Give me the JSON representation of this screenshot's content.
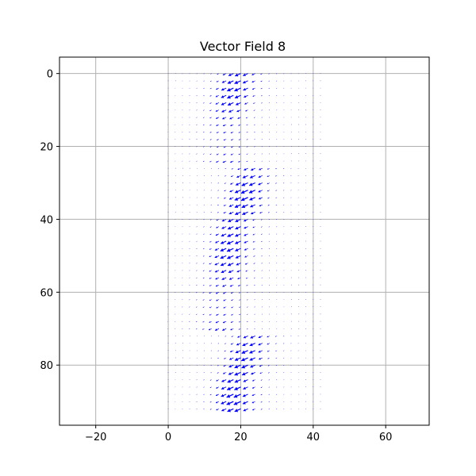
{
  "chart_data": {
    "type": "quiver",
    "title": "Vector Field 8",
    "xlabel": "",
    "ylabel": "",
    "xlim": [
      -30,
      72
    ],
    "ylim": [
      96.5,
      -4.5
    ],
    "y_inverted": true,
    "grid": true,
    "xticks": [
      -20,
      0,
      20,
      40,
      60
    ],
    "yticks": [
      0,
      20,
      40,
      60,
      80
    ],
    "arrow_color": "#0000ff",
    "grid_color": "#b0b0b0",
    "x_domain": [
      0,
      42
    ],
    "y_domain": [
      0,
      92
    ],
    "sample_spacing": 2,
    "description_of_field": "Vectors point mostly left and downward; largest magnitudes along a wavy vertical band near x=14-24, with strong bursts near y=0-12, y=28-38, y=44-58 and y=74-92.",
    "vectors": [
      {
        "x": 20,
        "y": 0,
        "u": -1.2,
        "v": 0.6
      },
      {
        "x": 18,
        "y": 2,
        "u": -1.1,
        "v": 0.4
      },
      {
        "x": 20,
        "y": 2,
        "u": -1.4,
        "v": 0.5
      },
      {
        "x": 16,
        "y": 8,
        "u": -1.0,
        "v": 0.3
      },
      {
        "x": 18,
        "y": 14,
        "u": -0.9,
        "v": 0.4
      },
      {
        "x": 24,
        "y": 28,
        "u": -1.3,
        "v": 0.6
      },
      {
        "x": 22,
        "y": 32,
        "u": -1.4,
        "v": 0.7
      },
      {
        "x": 22,
        "y": 36,
        "u": -1.2,
        "v": 0.5
      },
      {
        "x": 20,
        "y": 42,
        "u": -1.1,
        "v": 0.5
      },
      {
        "x": 18,
        "y": 50,
        "u": -1.0,
        "v": 0.4
      },
      {
        "x": 18,
        "y": 56,
        "u": -1.0,
        "v": 0.3
      },
      {
        "x": 24,
        "y": 74,
        "u": -1.3,
        "v": 0.6
      },
      {
        "x": 22,
        "y": 78,
        "u": -1.2,
        "v": 0.6
      },
      {
        "x": 20,
        "y": 84,
        "u": -1.0,
        "v": 0.5
      },
      {
        "x": 18,
        "y": 92,
        "u": -1.2,
        "v": 0.5
      }
    ]
  }
}
